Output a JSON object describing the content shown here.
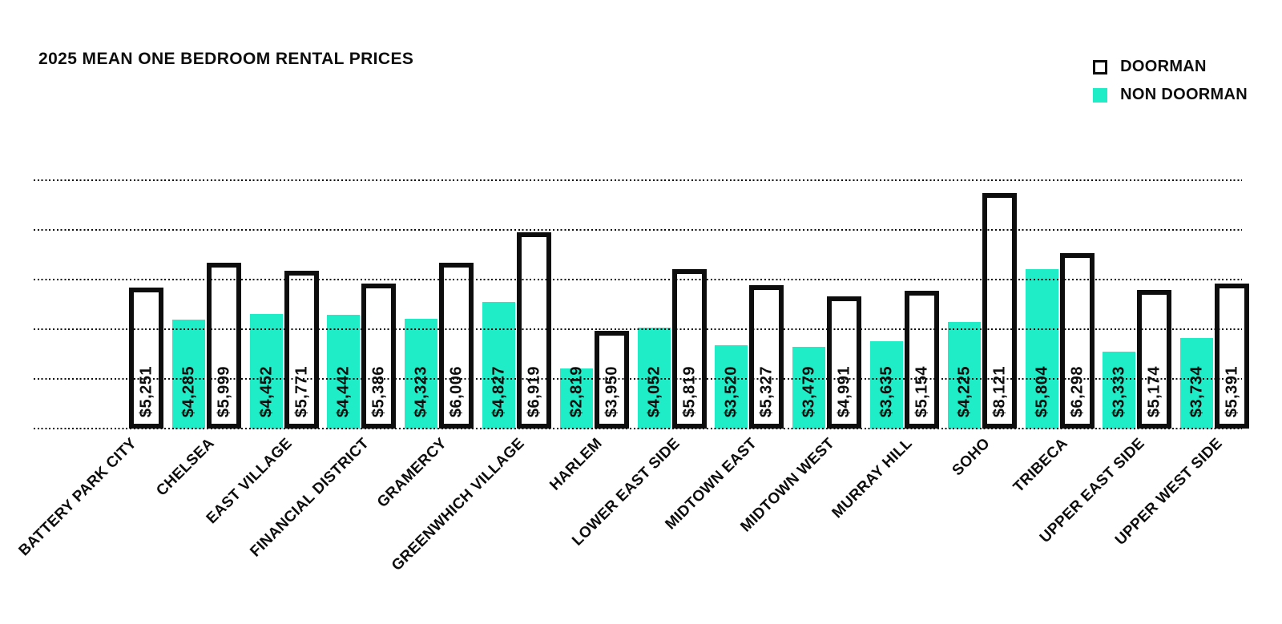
{
  "title": "2025 MEAN ONE BEDROOM RENTAL PRICES",
  "legend": {
    "items": [
      {
        "label": "DOORMAN",
        "swatch": "doorman"
      },
      {
        "label": "NON DOORMAN",
        "swatch": "non-doorman"
      }
    ]
  },
  "colors": {
    "non_doorman_fill": "#1fedc7",
    "doorman_fill": "#ffffff",
    "bar_border": "#0d0d0d",
    "text": "#0d0d0d",
    "background": "#ffffff"
  },
  "chart_data": {
    "type": "bar",
    "title": "2025 MEAN ONE BEDROOM RENTAL PRICES",
    "categories": [
      "BATTERY PARK CITY",
      "CHELSEA",
      "EAST VILLAGE",
      "FINANCIAL DISTRICT",
      "GRAMERCY",
      "GREENWHICH VILLAGE",
      "HARLEM",
      "LOWER EAST SIDE",
      "MIDTOWN EAST",
      "MIDTOWN WEST",
      "MURRAY HILL",
      "SOHO",
      "TRIBECA",
      "UPPER EAST SIDE",
      "UPPER WEST SIDE"
    ],
    "series": [
      {
        "name": "NON DOORMAN",
        "color": "#1fedc7",
        "values": [
          null,
          4285,
          4452,
          4442,
          4323,
          4827,
          2819,
          4052,
          3520,
          3479,
          3635,
          4225,
          5804,
          3333,
          3734
        ]
      },
      {
        "name": "DOORMAN",
        "color": "#ffffff",
        "values": [
          5251,
          5999,
          5771,
          5386,
          6006,
          6919,
          3950,
          5819,
          5327,
          4991,
          5154,
          8121,
          6298,
          5174,
          5391
        ]
      }
    ],
    "bar_value_label_format": "$#,###",
    "value_labels_rotated": "bottom-to-top inside bars",
    "xlabel": "",
    "ylabel": "",
    "ylim": [
      1000,
      8500
    ],
    "grid": {
      "visible": true,
      "style": "dotted",
      "step": 1500,
      "lines_over_bars": true
    },
    "y_axis_tick_labels": "none shown",
    "legend_position": "top-right",
    "x_tick_rotation_deg": 45
  }
}
